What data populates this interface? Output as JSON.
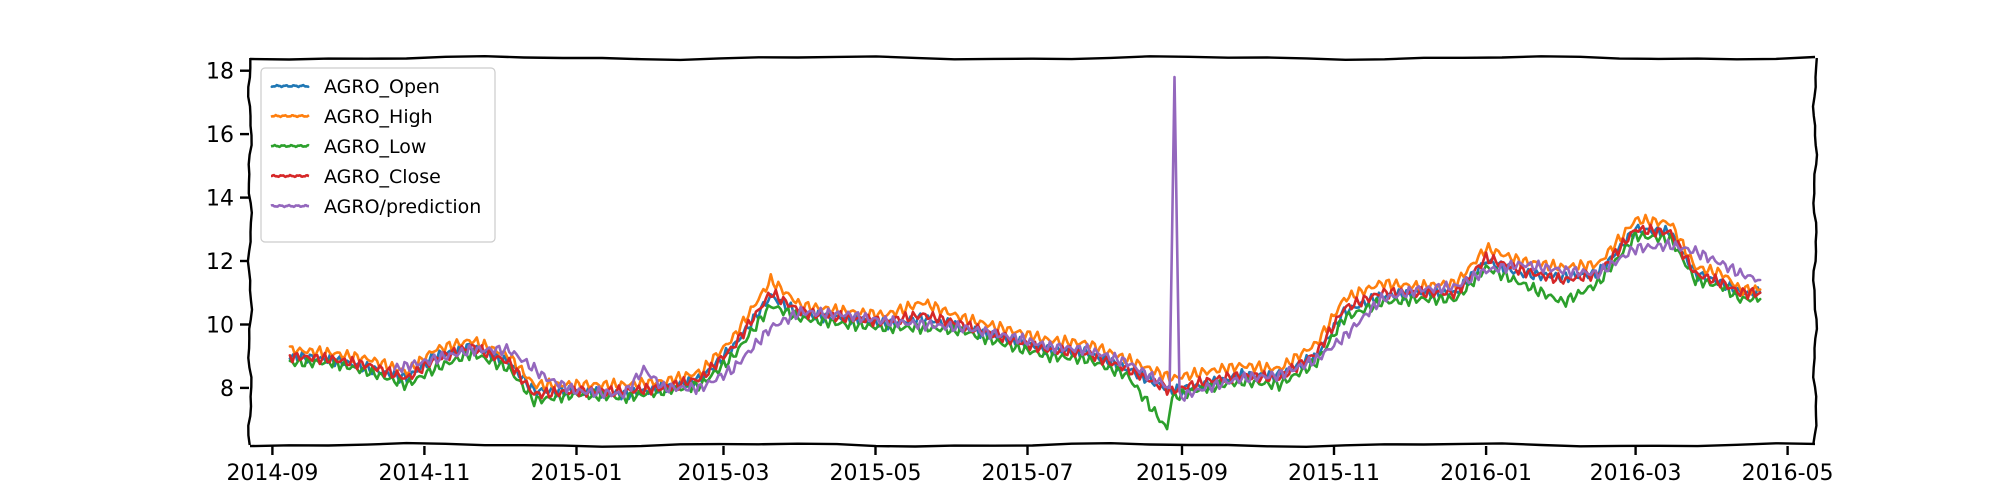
{
  "chart_data": {
    "type": "line",
    "title": "",
    "xlabel": "",
    "ylabel": "",
    "x_range": [
      "2014-09-08",
      "2016-04-20"
    ],
    "xlim": [
      "2014-08-23",
      "2016-05-12"
    ],
    "ylim": [
      6.2,
      18.4
    ],
    "x_ticks": [
      "2014-09",
      "2014-11",
      "2015-01",
      "2015-03",
      "2015-05",
      "2015-07",
      "2015-09",
      "2015-11",
      "2016-01",
      "2016-03",
      "2016-05"
    ],
    "y_ticks": [
      8,
      10,
      12,
      14,
      16,
      18
    ],
    "grid": false,
    "legend_position": "upper-left",
    "style": "xkcd",
    "series": [
      {
        "name": "AGRO_Open",
        "color": "#1f77b4",
        "points": [
          [
            "2014-09-08",
            9.0
          ],
          [
            "2014-09-25",
            8.9
          ],
          [
            "2014-10-10",
            8.6
          ],
          [
            "2014-10-25",
            8.3
          ],
          [
            "2014-11-05",
            9.0
          ],
          [
            "2014-11-20",
            9.3
          ],
          [
            "2014-12-05",
            8.8
          ],
          [
            "2014-12-15",
            7.9
          ],
          [
            "2015-01-01",
            7.9
          ],
          [
            "2015-01-20",
            7.8
          ],
          [
            "2015-02-05",
            8.0
          ],
          [
            "2015-02-20",
            8.3
          ],
          [
            "2015-03-05",
            9.3
          ],
          [
            "2015-03-20",
            10.9
          ],
          [
            "2015-04-01",
            10.3
          ],
          [
            "2015-04-20",
            10.2
          ],
          [
            "2015-05-05",
            10.0
          ],
          [
            "2015-05-20",
            10.2
          ],
          [
            "2015-06-05",
            9.9
          ],
          [
            "2015-06-25",
            9.5
          ],
          [
            "2015-07-10",
            9.2
          ],
          [
            "2015-07-25",
            9.1
          ],
          [
            "2015-08-10",
            8.6
          ],
          [
            "2015-08-28",
            7.9
          ],
          [
            "2015-09-10",
            8.1
          ],
          [
            "2015-09-25",
            8.4
          ],
          [
            "2015-10-10",
            8.4
          ],
          [
            "2015-10-25",
            9.0
          ],
          [
            "2015-11-05",
            10.4
          ],
          [
            "2015-11-20",
            10.9
          ],
          [
            "2015-12-05",
            11.0
          ],
          [
            "2015-12-20",
            11.0
          ],
          [
            "2016-01-01",
            12.0
          ],
          [
            "2016-01-15",
            11.6
          ],
          [
            "2016-02-01",
            11.5
          ],
          [
            "2016-02-15",
            11.6
          ],
          [
            "2016-03-01",
            13.0
          ],
          [
            "2016-03-15",
            12.9
          ],
          [
            "2016-03-25",
            11.6
          ],
          [
            "2016-04-05",
            11.3
          ],
          [
            "2016-04-12",
            11.0
          ],
          [
            "2016-04-20",
            11.0
          ]
        ]
      },
      {
        "name": "AGRO_High",
        "color": "#ff7f0e",
        "points": [
          [
            "2014-09-08",
            9.2
          ],
          [
            "2014-09-25",
            9.1
          ],
          [
            "2014-10-10",
            8.9
          ],
          [
            "2014-10-25",
            8.5
          ],
          [
            "2014-11-05",
            9.2
          ],
          [
            "2014-11-20",
            9.5
          ],
          [
            "2014-12-05",
            9.0
          ],
          [
            "2014-12-15",
            8.1
          ],
          [
            "2015-01-01",
            8.1
          ],
          [
            "2015-01-20",
            8.1
          ],
          [
            "2015-02-05",
            8.2
          ],
          [
            "2015-02-20",
            8.5
          ],
          [
            "2015-03-05",
            9.6
          ],
          [
            "2015-03-20",
            11.4
          ],
          [
            "2015-04-01",
            10.6
          ],
          [
            "2015-04-20",
            10.4
          ],
          [
            "2015-05-05",
            10.3
          ],
          [
            "2015-05-20",
            10.7
          ],
          [
            "2015-06-05",
            10.2
          ],
          [
            "2015-06-25",
            9.8
          ],
          [
            "2015-07-10",
            9.5
          ],
          [
            "2015-07-25",
            9.4
          ],
          [
            "2015-08-10",
            8.9
          ],
          [
            "2015-08-28",
            8.3
          ],
          [
            "2015-09-10",
            8.5
          ],
          [
            "2015-09-25",
            8.7
          ],
          [
            "2015-10-10",
            8.6
          ],
          [
            "2015-10-25",
            9.4
          ],
          [
            "2015-11-05",
            10.8
          ],
          [
            "2015-11-20",
            11.3
          ],
          [
            "2015-12-05",
            11.2
          ],
          [
            "2015-12-20",
            11.3
          ],
          [
            "2016-01-01",
            12.4
          ],
          [
            "2016-01-15",
            12.0
          ],
          [
            "2016-02-01",
            11.8
          ],
          [
            "2016-02-15",
            11.9
          ],
          [
            "2016-03-01",
            13.3
          ],
          [
            "2016-03-15",
            13.2
          ],
          [
            "2016-03-25",
            11.8
          ],
          [
            "2016-04-05",
            11.6
          ],
          [
            "2016-04-12",
            11.1
          ],
          [
            "2016-04-20",
            11.1
          ]
        ]
      },
      {
        "name": "AGRO_Low",
        "color": "#2ca02c",
        "points": [
          [
            "2014-09-08",
            8.8
          ],
          [
            "2014-09-25",
            8.8
          ],
          [
            "2014-10-10",
            8.5
          ],
          [
            "2014-10-25",
            8.1
          ],
          [
            "2014-11-05",
            8.6
          ],
          [
            "2014-11-20",
            9.1
          ],
          [
            "2014-12-05",
            8.6
          ],
          [
            "2014-12-15",
            7.6
          ],
          [
            "2015-01-01",
            7.8
          ],
          [
            "2015-01-20",
            7.7
          ],
          [
            "2015-02-05",
            7.9
          ],
          [
            "2015-02-20",
            8.1
          ],
          [
            "2015-03-05",
            9.0
          ],
          [
            "2015-03-20",
            10.6
          ],
          [
            "2015-04-01",
            10.2
          ],
          [
            "2015-04-20",
            10.0
          ],
          [
            "2015-05-05",
            9.9
          ],
          [
            "2015-05-20",
            9.9
          ],
          [
            "2015-06-05",
            9.8
          ],
          [
            "2015-06-25",
            9.3
          ],
          [
            "2015-07-10",
            9.0
          ],
          [
            "2015-07-25",
            8.9
          ],
          [
            "2015-08-10",
            8.4
          ],
          [
            "2015-08-26",
            6.7
          ],
          [
            "2015-08-28",
            7.7
          ],
          [
            "2015-09-10",
            8.0
          ],
          [
            "2015-09-25",
            8.2
          ],
          [
            "2015-10-10",
            8.1
          ],
          [
            "2015-10-25",
            8.8
          ],
          [
            "2015-11-05",
            10.2
          ],
          [
            "2015-11-20",
            10.7
          ],
          [
            "2015-12-05",
            10.8
          ],
          [
            "2015-12-20",
            10.8
          ],
          [
            "2016-01-01",
            11.8
          ],
          [
            "2016-01-15",
            11.3
          ],
          [
            "2016-02-01",
            10.7
          ],
          [
            "2016-02-15",
            11.3
          ],
          [
            "2016-03-01",
            12.8
          ],
          [
            "2016-03-15",
            12.7
          ],
          [
            "2016-03-25",
            11.4
          ],
          [
            "2016-04-05",
            11.2
          ],
          [
            "2016-04-12",
            10.8
          ],
          [
            "2016-04-20",
            10.8
          ]
        ]
      },
      {
        "name": "AGRO_Close",
        "color": "#d62728",
        "points": [
          [
            "2014-09-08",
            9.0
          ],
          [
            "2014-09-25",
            8.9
          ],
          [
            "2014-10-10",
            8.7
          ],
          [
            "2014-10-25",
            8.3
          ],
          [
            "2014-11-05",
            8.9
          ],
          [
            "2014-11-20",
            9.3
          ],
          [
            "2014-12-05",
            8.8
          ],
          [
            "2014-12-15",
            7.8
          ],
          [
            "2015-01-01",
            7.9
          ],
          [
            "2015-01-20",
            7.9
          ],
          [
            "2015-02-05",
            8.0
          ],
          [
            "2015-02-20",
            8.3
          ],
          [
            "2015-03-05",
            9.3
          ],
          [
            "2015-03-20",
            11.0
          ],
          [
            "2015-04-01",
            10.4
          ],
          [
            "2015-04-20",
            10.2
          ],
          [
            "2015-05-05",
            10.1
          ],
          [
            "2015-05-20",
            10.3
          ],
          [
            "2015-06-05",
            10.0
          ],
          [
            "2015-06-25",
            9.5
          ],
          [
            "2015-07-10",
            9.2
          ],
          [
            "2015-07-25",
            9.1
          ],
          [
            "2015-08-10",
            8.6
          ],
          [
            "2015-08-28",
            7.9
          ],
          [
            "2015-09-10",
            8.2
          ],
          [
            "2015-09-25",
            8.4
          ],
          [
            "2015-10-10",
            8.3
          ],
          [
            "2015-10-25",
            9.1
          ],
          [
            "2015-11-05",
            10.5
          ],
          [
            "2015-11-20",
            11.0
          ],
          [
            "2015-12-05",
            11.0
          ],
          [
            "2015-12-20",
            11.0
          ],
          [
            "2016-01-01",
            12.1
          ],
          [
            "2016-01-15",
            11.7
          ],
          [
            "2016-02-01",
            11.4
          ],
          [
            "2016-02-15",
            11.6
          ],
          [
            "2016-03-01",
            13.0
          ],
          [
            "2016-03-15",
            12.9
          ],
          [
            "2016-03-25",
            11.6
          ],
          [
            "2016-04-05",
            11.3
          ],
          [
            "2016-04-12",
            11.0
          ],
          [
            "2016-04-20",
            11.0
          ]
        ]
      },
      {
        "name": "AGRO/prediction",
        "color": "#9467bd",
        "points": [
          [
            "2014-10-20",
            8.6
          ],
          [
            "2014-11-05",
            8.9
          ],
          [
            "2014-11-20",
            9.2
          ],
          [
            "2014-12-05",
            9.2
          ],
          [
            "2014-12-20",
            8.3
          ],
          [
            "2015-01-01",
            7.9
          ],
          [
            "2015-01-20",
            7.8
          ],
          [
            "2015-01-28",
            8.6
          ],
          [
            "2015-02-05",
            8.0
          ],
          [
            "2015-02-20",
            8.0
          ],
          [
            "2015-03-05",
            8.6
          ],
          [
            "2015-03-20",
            9.9
          ],
          [
            "2015-04-01",
            10.4
          ],
          [
            "2015-04-20",
            10.3
          ],
          [
            "2015-05-05",
            10.1
          ],
          [
            "2015-05-20",
            10.0
          ],
          [
            "2015-06-05",
            9.9
          ],
          [
            "2015-06-25",
            9.6
          ],
          [
            "2015-07-10",
            9.3
          ],
          [
            "2015-07-25",
            9.2
          ],
          [
            "2015-08-10",
            8.8
          ],
          [
            "2015-08-27",
            8.0
          ],
          [
            "2015-08-29",
            17.8
          ],
          [
            "2015-08-31",
            7.7
          ],
          [
            "2015-09-10",
            8.0
          ],
          [
            "2015-09-25",
            8.3
          ],
          [
            "2015-10-10",
            8.4
          ],
          [
            "2015-10-25",
            8.9
          ],
          [
            "2015-11-05",
            9.6
          ],
          [
            "2015-11-20",
            10.8
          ],
          [
            "2015-12-05",
            11.1
          ],
          [
            "2015-12-20",
            11.2
          ],
          [
            "2016-01-01",
            11.7
          ],
          [
            "2016-01-15",
            11.9
          ],
          [
            "2016-02-01",
            11.7
          ],
          [
            "2016-02-15",
            11.6
          ],
          [
            "2016-03-01",
            12.4
          ],
          [
            "2016-03-15",
            12.5
          ],
          [
            "2016-03-25",
            12.3
          ],
          [
            "2016-04-05",
            11.9
          ],
          [
            "2016-04-12",
            11.6
          ],
          [
            "2016-04-20",
            11.4
          ]
        ]
      }
    ]
  }
}
